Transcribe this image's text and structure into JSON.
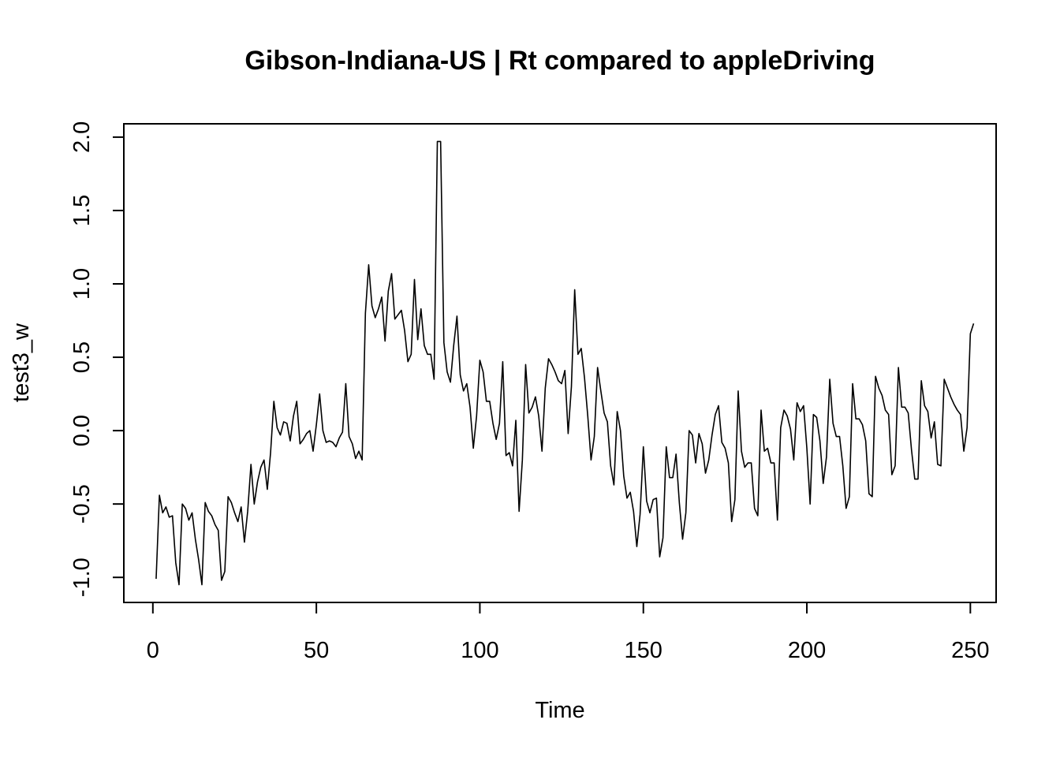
{
  "chart_data": {
    "type": "line",
    "title": "Gibson-Indiana-US | Rt compared to appleDriving",
    "xlabel": "Time",
    "ylabel": "test3_w",
    "xlim": [
      1,
      248
    ],
    "ylim": [
      -1.05,
      1.97
    ],
    "xticks": [
      0,
      50,
      100,
      150,
      200,
      250
    ],
    "yticks": [
      -1.0,
      -0.5,
      0.0,
      0.5,
      1.0,
      1.5,
      2.0
    ],
    "xtick_labels": [
      "0",
      "50",
      "100",
      "150",
      "200",
      "250"
    ],
    "ytick_labels": [
      "-1.0",
      "-0.5",
      "0.0",
      "0.5",
      "1.0",
      "1.5",
      "2.0"
    ],
    "grid": false,
    "legend": "none",
    "line_color": "#000000",
    "series": [
      {
        "x_start": 1,
        "x_step": 1,
        "values": [
          -1.01,
          -0.44,
          -0.56,
          -0.52,
          -0.59,
          -0.58,
          -0.9,
          -1.05,
          -0.5,
          -0.53,
          -0.61,
          -0.56,
          -0.74,
          -0.88,
          -1.05,
          -0.49,
          -0.55,
          -0.58,
          -0.64,
          -0.68,
          -1.02,
          -0.96,
          -0.45,
          -0.49,
          -0.56,
          -0.62,
          -0.52,
          -0.76,
          -0.55,
          -0.23,
          -0.5,
          -0.35,
          -0.25,
          -0.2,
          -0.4,
          -0.15,
          0.2,
          0.02,
          -0.03,
          0.06,
          0.05,
          -0.07,
          0.1,
          0.2,
          -0.09,
          -0.06,
          -0.02,
          0.0,
          -0.14,
          0.04,
          0.25,
          0.0,
          -0.08,
          -0.07,
          -0.08,
          -0.11,
          -0.05,
          -0.01,
          0.32,
          -0.04,
          -0.09,
          -0.19,
          -0.14,
          -0.2,
          0.8,
          1.13,
          0.85,
          0.77,
          0.83,
          0.91,
          0.61,
          0.95,
          1.07,
          0.76,
          0.79,
          0.82,
          0.68,
          0.47,
          0.52,
          1.03,
          0.62,
          0.83,
          0.58,
          0.52,
          0.52,
          0.35,
          1.97,
          1.97,
          0.6,
          0.4,
          0.33,
          0.58,
          0.78,
          0.38,
          0.27,
          0.32,
          0.16,
          -0.12,
          0.1,
          0.48,
          0.4,
          0.2,
          0.2,
          0.05,
          -0.06,
          0.05,
          0.47,
          -0.17,
          -0.15,
          -0.24,
          0.07,
          -0.55,
          -0.2,
          0.45,
          0.12,
          0.16,
          0.23,
          0.1,
          -0.14,
          0.29,
          0.49,
          0.45,
          0.4,
          0.34,
          0.32,
          0.41,
          -0.02,
          0.3,
          0.96,
          0.52,
          0.56,
          0.36,
          0.1,
          -0.2,
          -0.04,
          0.43,
          0.27,
          0.12,
          0.06,
          -0.24,
          -0.37,
          0.13,
          0.0,
          -0.31,
          -0.46,
          -0.42,
          -0.55,
          -0.79,
          -0.57,
          -0.11,
          -0.48,
          -0.56,
          -0.47,
          -0.46,
          -0.86,
          -0.73,
          -0.11,
          -0.32,
          -0.32,
          -0.16,
          -0.49,
          -0.74,
          -0.56,
          0.0,
          -0.03,
          -0.22,
          -0.02,
          -0.09,
          -0.29,
          -0.2,
          -0.03,
          0.11,
          0.17,
          -0.08,
          -0.12,
          -0.22,
          -0.62,
          -0.47,
          0.27,
          -0.14,
          -0.25,
          -0.22,
          -0.22,
          -0.53,
          -0.58,
          0.14,
          -0.14,
          -0.12,
          -0.22,
          -0.22,
          -0.61,
          0.02,
          0.14,
          0.1,
          0.01,
          -0.2,
          0.19,
          0.13,
          0.17,
          -0.12,
          -0.5,
          0.11,
          0.09,
          -0.07,
          -0.36,
          -0.18,
          0.35,
          0.05,
          -0.04,
          -0.04,
          -0.24,
          -0.53,
          -0.45,
          0.32,
          0.08,
          0.08,
          0.04,
          -0.07,
          -0.43,
          -0.45,
          0.37,
          0.29,
          0.24,
          0.14,
          0.11,
          -0.3,
          -0.24,
          0.43,
          0.16,
          0.16,
          0.12,
          -0.13,
          -0.33,
          -0.33,
          0.34,
          0.17,
          0.13,
          -0.05,
          0.06,
          -0.23,
          -0.24,
          0.35,
          0.29,
          0.23,
          0.18,
          0.14,
          0.11,
          -0.14,
          0.02,
          0.66,
          0.73
        ]
      }
    ]
  }
}
